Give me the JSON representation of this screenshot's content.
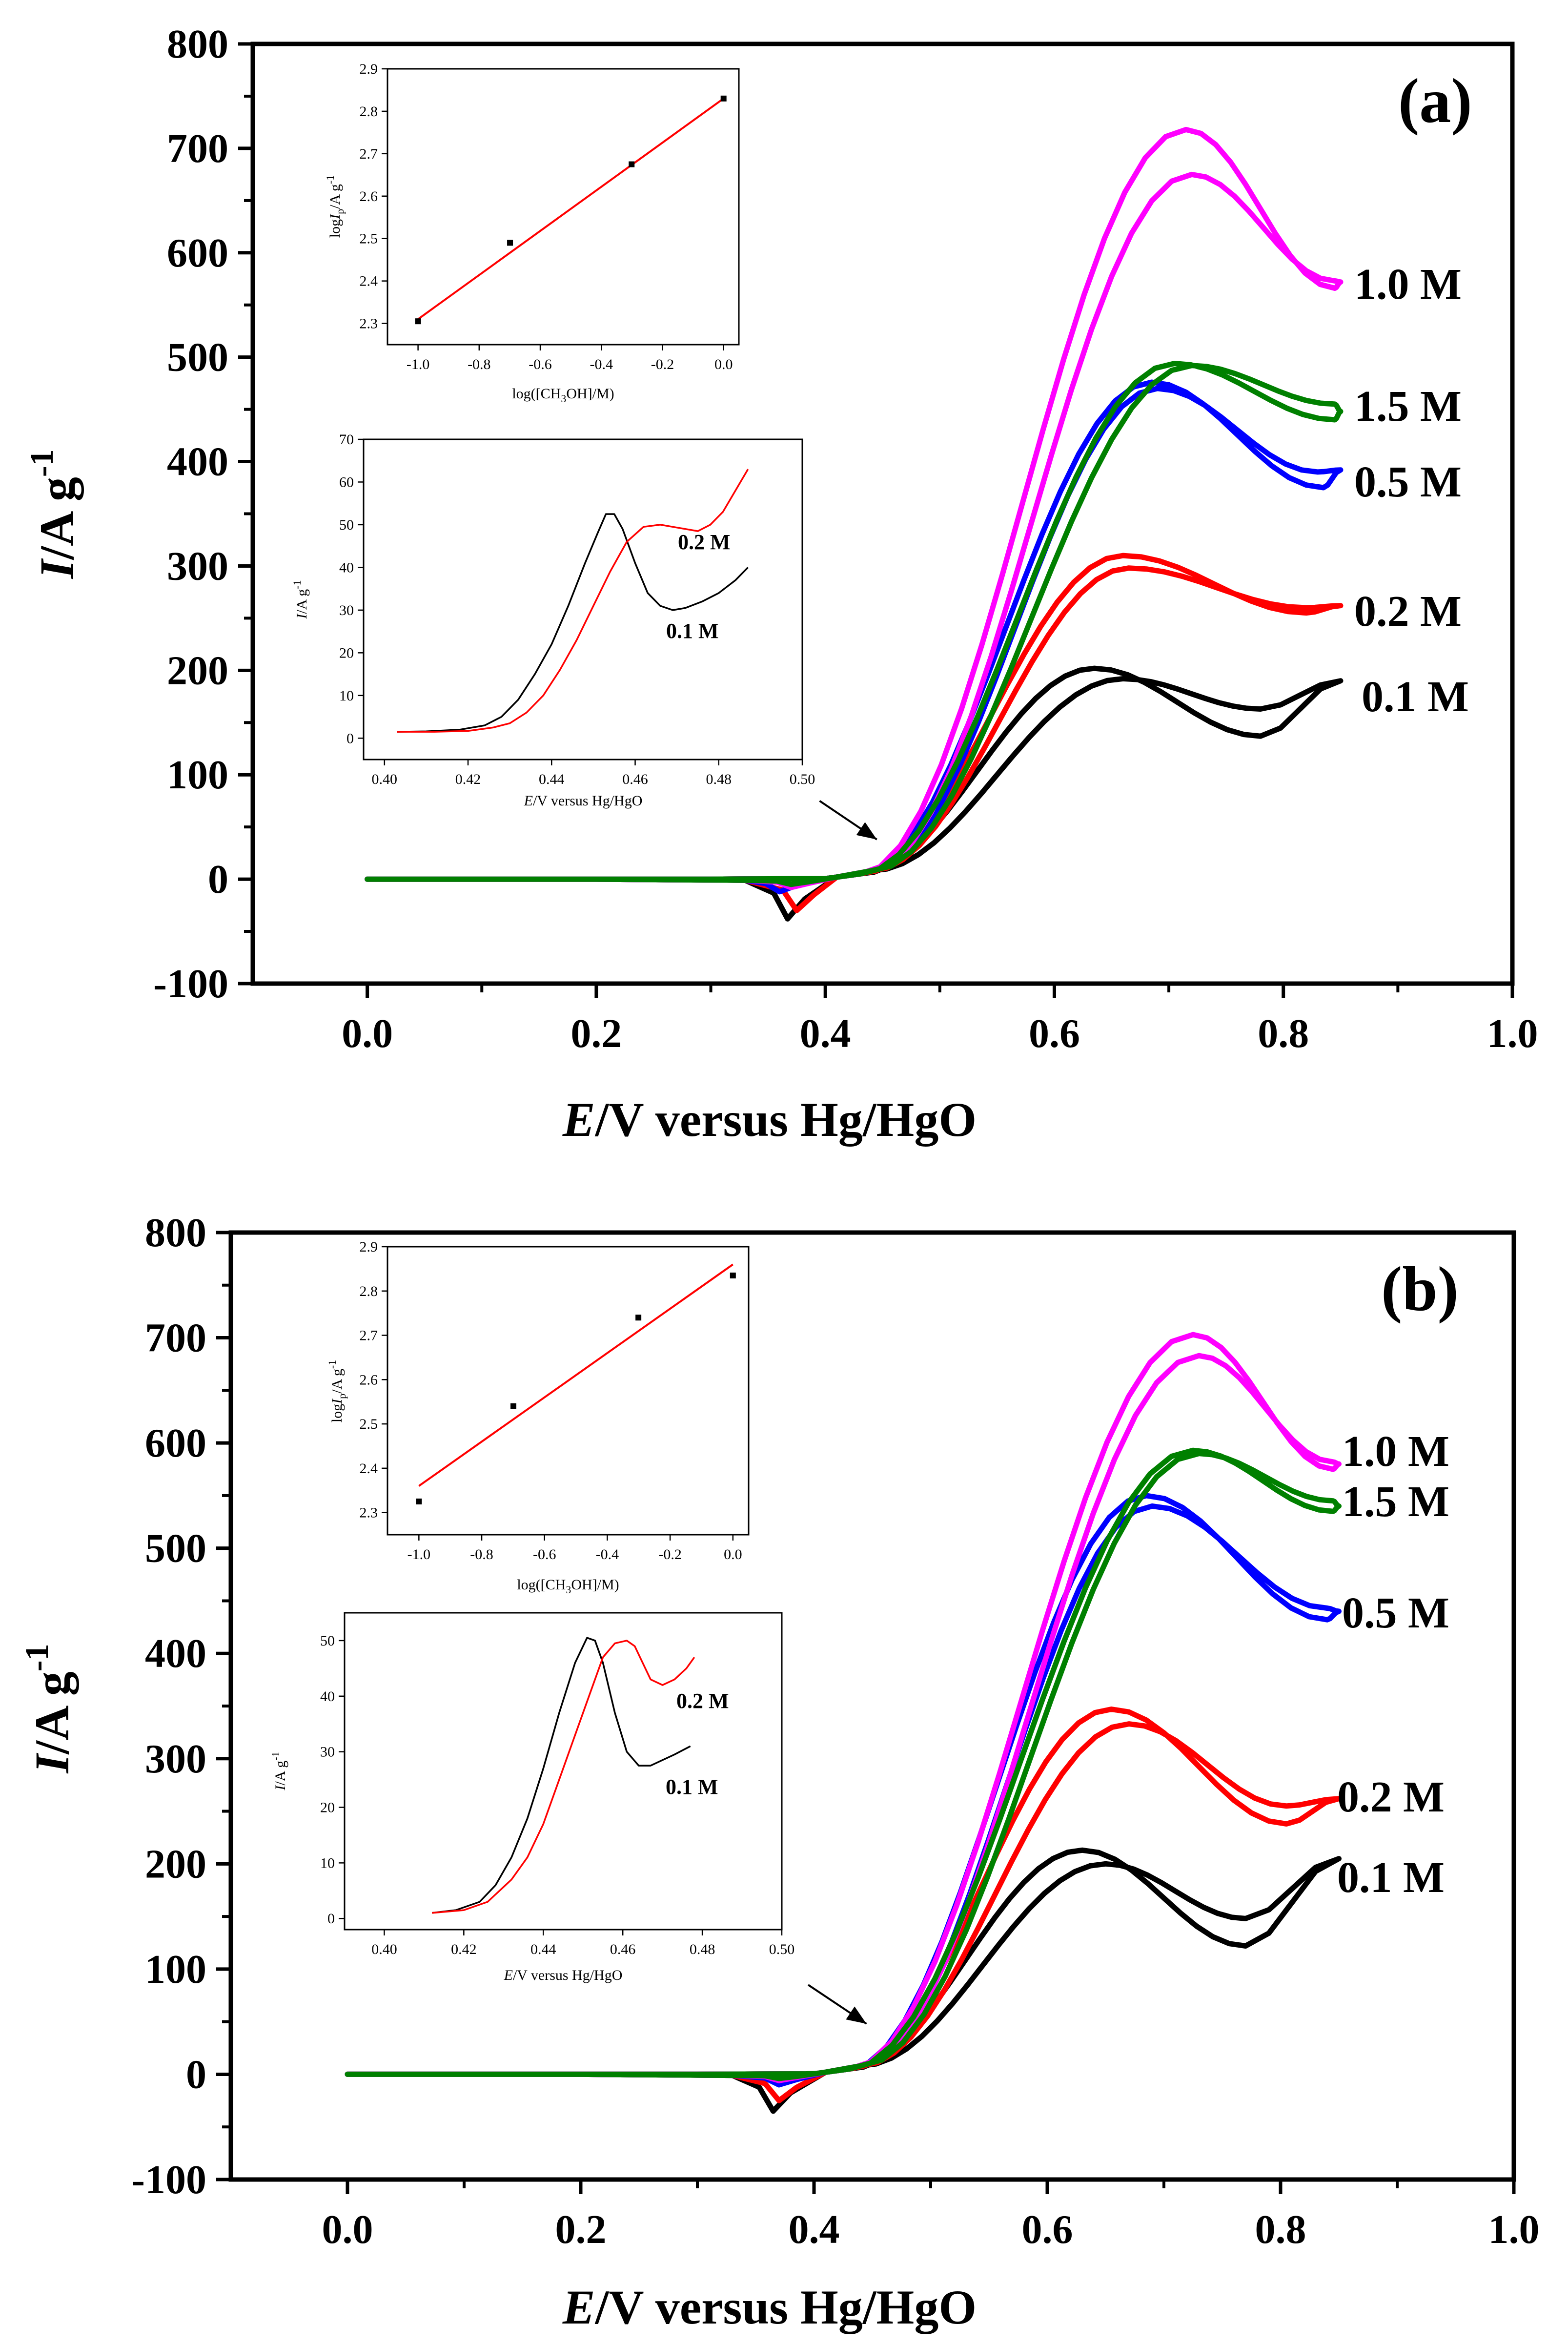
{
  "colors": {
    "c01": "#000000",
    "c02": "#ff0000",
    "c05": "#0000ff",
    "c10": "#ff00ff",
    "c15": "#008000",
    "fit": "#ff0000",
    "axis": "#000000"
  },
  "chart_data": [
    {
      "panel": "a",
      "type": "line",
      "tag": "(a)",
      "title": "",
      "xlabel": "E/V versus Hg/HgO",
      "ylabel": "I/A g-1",
      "xlim": [
        -0.1,
        1.0
      ],
      "ylim": [
        -100,
        800
      ],
      "xticks": [
        "0.0",
        "0.2",
        "0.4",
        "0.6",
        "0.8",
        "1.0"
      ],
      "yticks": [
        "-100",
        "0",
        "100",
        "200",
        "300",
        "400",
        "500",
        "600",
        "700",
        "800"
      ],
      "series": [
        {
          "name": "0.1 M",
          "label": "0.1 M",
          "color_key": "c01",
          "dip": [
            0.367,
            -38
          ],
          "peak_f": [
            0.635,
            202
          ],
          "peak_b": [
            0.66,
            192
          ],
          "valley_f": [
            0.78,
            137
          ],
          "valley_b": [
            0.78,
            163
          ],
          "end_i": 190
        },
        {
          "name": "0.2 M",
          "label": "0.2 M",
          "color_key": "c02",
          "dip": [
            0.375,
            -30
          ],
          "peak_f": [
            0.66,
            310
          ],
          "peak_b": [
            0.665,
            298
          ],
          "valley_f": [
            0.82,
            255
          ],
          "valley_b": [
            0.82,
            260
          ],
          "end_i": 262
        },
        {
          "name": "0.5 M",
          "label": "0.5 M",
          "color_key": "c05",
          "dip": [
            0.36,
            -12
          ],
          "peak_f": [
            0.685,
            476
          ],
          "peak_b": [
            0.69,
            470
          ],
          "valley_f": [
            0.835,
            375
          ],
          "valley_b": [
            0.83,
            390
          ],
          "end_i": 392
        },
        {
          "name": "1.0 M",
          "label": "1.0 M",
          "color_key": "c10",
          "dip": [
            0.37,
            -8
          ],
          "peak_f": [
            0.715,
            718
          ],
          "peak_b": [
            0.72,
            675
          ],
          "valley_f": [
            0.845,
            566
          ],
          "valley_b": [
            0.845,
            573
          ],
          "end_i": 572
        },
        {
          "name": "1.5 M",
          "label": "1.5 M",
          "color_key": "c15",
          "dip": [
            0.37,
            -5
          ],
          "peak_f": [
            0.705,
            494
          ],
          "peak_b": [
            0.72,
            492
          ],
          "valley_f": [
            0.845,
            440
          ],
          "valley_b": [
            0.845,
            455
          ],
          "end_i": 448
        }
      ],
      "annotation_arrow": {
        "from": [
          0.395,
          75
        ],
        "to": [
          0.445,
          38
        ]
      },
      "inset_log": {
        "type": "scatter",
        "xlabel": "log([CH3OH]/M)",
        "ylabel": "log Ip/A g-1",
        "xlim": [
          -1.1,
          0.05
        ],
        "ylim": [
          2.25,
          2.9
        ],
        "xticks": [
          "-1.0",
          "-0.8",
          "-0.6",
          "-0.4",
          "-0.2",
          "0.0"
        ],
        "yticks": [
          "2.3",
          "2.4",
          "2.5",
          "2.6",
          "2.7",
          "2.8",
          "2.9"
        ],
        "x": [
          -1.0,
          -0.699,
          -0.301,
          0.0
        ],
        "y": [
          2.305,
          2.49,
          2.675,
          2.83
        ],
        "fit": {
          "x": [
            -1.0,
            0.0
          ],
          "y": [
            2.31,
            2.83
          ]
        }
      },
      "inset_onset": {
        "type": "line",
        "xlabel": "E/V versus Hg/HgO",
        "ylabel": "I/A g-1",
        "xlim": [
          0.395,
          0.5
        ],
        "ylim": [
          -5,
          70
        ],
        "xticks": [
          "0.40",
          "0.42",
          "0.44",
          "0.46",
          "0.48",
          "0.50"
        ],
        "yticks": [
          "0",
          "10",
          "20",
          "30",
          "40",
          "50",
          "60",
          "70"
        ],
        "series": [
          {
            "name": "0.1 M",
            "label": "0.1 M",
            "color_key": "c01",
            "x": [
              0.403,
              0.41,
              0.418,
              0.424,
              0.428,
              0.432,
              0.436,
              0.44,
              0.444,
              0.448,
              0.451,
              0.453,
              0.455,
              0.457,
              0.46,
              0.463,
              0.466,
              0.469,
              0.472,
              0.476,
              0.48,
              0.484,
              0.487
            ],
            "y": [
              1.5,
              1.6,
              2,
              3,
              5,
              9,
              15,
              22,
              31,
              41,
              48,
              52.5,
              52.5,
              49,
              41,
              34,
              31,
              30,
              30.5,
              32,
              34,
              37,
              40
            ]
          },
          {
            "name": "0.2 M",
            "label": "0.2 M",
            "color_key": "c02",
            "x": [
              0.403,
              0.412,
              0.42,
              0.426,
              0.43,
              0.434,
              0.438,
              0.442,
              0.446,
              0.45,
              0.454,
              0.458,
              0.462,
              0.466,
              0.469,
              0.472,
              0.475,
              0.478,
              0.481,
              0.484,
              0.487
            ],
            "y": [
              1.5,
              1.5,
              1.7,
              2.5,
              3.5,
              6,
              10,
              16,
              23,
              31,
              39,
              46,
              49.5,
              50,
              49.5,
              49,
              48.5,
              50,
              53,
              58,
              63
            ]
          }
        ]
      }
    },
    {
      "panel": "b",
      "type": "line",
      "tag": "(b)",
      "title": "",
      "xlabel": "E/V versus Hg/HgO",
      "ylabel": "I/A g-1",
      "xlim": [
        -0.1,
        1.0
      ],
      "ylim": [
        -100,
        800
      ],
      "xticks": [
        "0.0",
        "0.2",
        "0.4",
        "0.6",
        "0.8",
        "1.0"
      ],
      "yticks": [
        "-100",
        "0",
        "100",
        "200",
        "300",
        "400",
        "500",
        "600",
        "700",
        "800"
      ],
      "series": [
        {
          "name": "0.1 M",
          "label": "0.1 M",
          "color_key": "c01",
          "dip": [
            0.365,
            -35
          ],
          "peak_f": [
            0.63,
            213
          ],
          "peak_b": [
            0.65,
            200
          ],
          "valley_f": [
            0.77,
            122
          ],
          "valley_b": [
            0.77,
            148
          ],
          "end_i": 205
        },
        {
          "name": "0.2 M",
          "label": "0.2 M",
          "color_key": "c02",
          "dip": [
            0.37,
            -25
          ],
          "peak_f": [
            0.655,
            347
          ],
          "peak_b": [
            0.67,
            333
          ],
          "valley_f": [
            0.805,
            238
          ],
          "valley_b": [
            0.805,
            255
          ],
          "end_i": 262
        },
        {
          "name": "0.5 M",
          "label": "0.5 M",
          "color_key": "c05",
          "dip": [
            0.37,
            -10
          ],
          "peak_f": [
            0.685,
            550
          ],
          "peak_b": [
            0.69,
            540
          ],
          "valley_f": [
            0.84,
            432
          ],
          "valley_b": [
            0.84,
            443
          ],
          "end_i": 440
        },
        {
          "name": "1.0 M",
          "label": "1.0 M",
          "color_key": "c10",
          "dip": [
            0.37,
            -6
          ],
          "peak_f": [
            0.725,
            703
          ],
          "peak_b": [
            0.73,
            683
          ],
          "valley_f": [
            0.845,
            575
          ],
          "valley_b": [
            0.845,
            582
          ],
          "end_i": 580
        },
        {
          "name": "1.5 M",
          "label": "1.5 M",
          "color_key": "c15",
          "dip": [
            0.37,
            -4
          ],
          "peak_f": [
            0.725,
            593
          ],
          "peak_b": [
            0.73,
            590
          ],
          "valley_f": [
            0.845,
            535
          ],
          "valley_b": [
            0.845,
            545
          ],
          "end_i": 540
        }
      ],
      "annotation_arrow": {
        "from": [
          0.395,
          85
        ],
        "to": [
          0.445,
          48
        ]
      },
      "inset_log": {
        "type": "scatter",
        "xlabel": "log([CH3OH]/M)",
        "ylabel": "log Ip/A g-1",
        "xlim": [
          -1.1,
          0.05
        ],
        "ylim": [
          2.25,
          2.9
        ],
        "xticks": [
          "-1.0",
          "-0.8",
          "-0.6",
          "-0.4",
          "-0.2",
          "0.0"
        ],
        "yticks": [
          "2.3",
          "2.4",
          "2.5",
          "2.6",
          "2.7",
          "2.8",
          "2.9"
        ],
        "x": [
          -1.0,
          -0.699,
          -0.301,
          0.0
        ],
        "y": [
          2.325,
          2.54,
          2.74,
          2.835
        ],
        "fit": {
          "x": [
            -1.0,
            0.0
          ],
          "y": [
            2.36,
            2.86
          ]
        }
      },
      "inset_onset": {
        "type": "line",
        "xlabel": "E/V versus Hg/HgO",
        "ylabel": "I/A g-1",
        "xlim": [
          0.39,
          0.5
        ],
        "ylim": [
          -2,
          55
        ],
        "xticks": [
          "0.40",
          "0.42",
          "0.44",
          "0.46",
          "0.48",
          "0.50"
        ],
        "yticks": [
          "0",
          "10",
          "20",
          "30",
          "40",
          "50"
        ],
        "series": [
          {
            "name": "0.1 M",
            "label": "0.1 M",
            "color_key": "c01",
            "x": [
              0.412,
              0.418,
              0.424,
              0.428,
              0.432,
              0.436,
              0.44,
              0.444,
              0.448,
              0.451,
              0.453,
              0.455,
              0.458,
              0.461,
              0.464,
              0.467,
              0.47,
              0.473,
              0.477
            ],
            "y": [
              1,
              1.5,
              3,
              6,
              11,
              18,
              27,
              37,
              46,
              50.5,
              50,
              46,
              37,
              30,
              27.5,
              27.5,
              28.5,
              29.5,
              31
            ]
          },
          {
            "name": "0.2 M",
            "label": "0.2 M",
            "color_key": "c02",
            "x": [
              0.412,
              0.42,
              0.426,
              0.432,
              0.436,
              0.44,
              0.444,
              0.448,
              0.452,
              0.455,
              0.458,
              0.461,
              0.463,
              0.465,
              0.467,
              0.47,
              0.473,
              0.476,
              0.478
            ],
            "y": [
              1,
              1.5,
              3,
              7,
              11,
              17,
              25,
              33,
              41,
              47,
              49.5,
              50,
              49,
              46,
              43,
              42,
              43,
              45,
              47
            ]
          }
        ]
      }
    }
  ]
}
